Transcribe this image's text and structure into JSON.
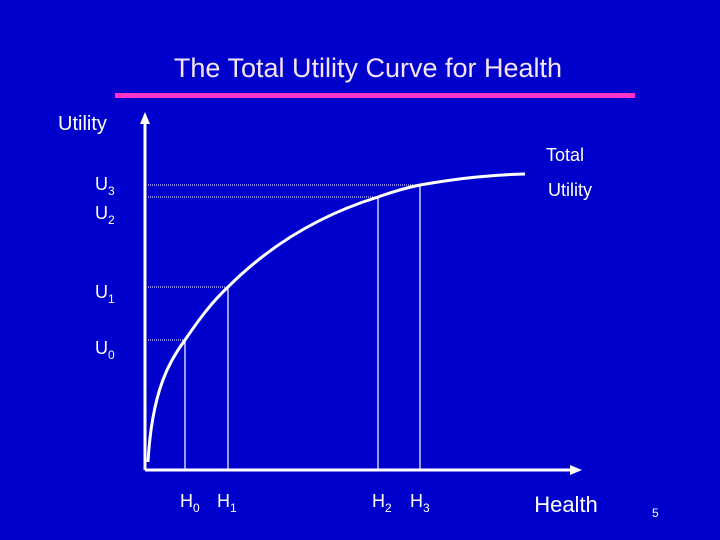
{
  "header": {
    "title": "The Total Utility Curve for Health"
  },
  "axes": {
    "y_label": "Utility",
    "x_label": "Health"
  },
  "curve_label": [
    "Total",
    "Utility"
  ],
  "y_levels": [
    {
      "base": "U",
      "sub": "3"
    },
    {
      "base": "U",
      "sub": "2"
    },
    {
      "base": "U",
      "sub": "1"
    },
    {
      "base": "U",
      "sub": "0"
    }
  ],
  "x_levels": [
    {
      "base": "H",
      "sub": "0"
    },
    {
      "base": "H",
      "sub": "1"
    },
    {
      "base": "H",
      "sub": "2"
    },
    {
      "base": "H",
      "sub": "3"
    }
  ],
  "page_number": "5"
}
